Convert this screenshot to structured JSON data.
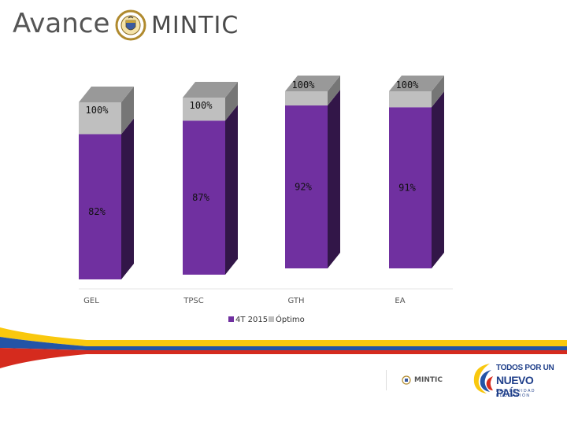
{
  "slide": {
    "title": "Avance"
  },
  "logo": {
    "wordmark": "MINTIC",
    "seal_text": "REPÚBLICA DE COLOMBIA"
  },
  "footer": {
    "mintic_label": "MINTIC",
    "campaign_line1": "TODOS POR UN",
    "campaign_line2": "NUEVO PAÍS",
    "campaign_tagline": "PAZ EQUIDAD EDUCACIÓN"
  },
  "colors": {
    "series_4t2015": "#7030a0",
    "series_optimo": "#bfbfbf",
    "flag_yellow": "#f9c80e",
    "flag_blue": "#2354a6",
    "flag_red": "#d52b1e"
  },
  "chart_data": {
    "type": "bar",
    "stacked": true,
    "three_d": true,
    "categories": [
      "GEL",
      "TPSC",
      "GTH",
      "EA"
    ],
    "series": [
      {
        "name": "4T 2015",
        "values": [
          82,
          87,
          92,
          91
        ],
        "color": "#7030a0"
      },
      {
        "name": "Óptimo",
        "values": [
          18,
          13,
          8,
          9
        ],
        "color": "#bfbfbf"
      }
    ],
    "data_labels": {
      "actual": [
        "82%",
        "87%",
        "92%",
        "91%"
      ],
      "target": [
        "100%",
        "100%",
        "100%",
        "100%"
      ]
    },
    "ylim": [
      0,
      100
    ],
    "legend_position": "bottom",
    "grid": false
  }
}
